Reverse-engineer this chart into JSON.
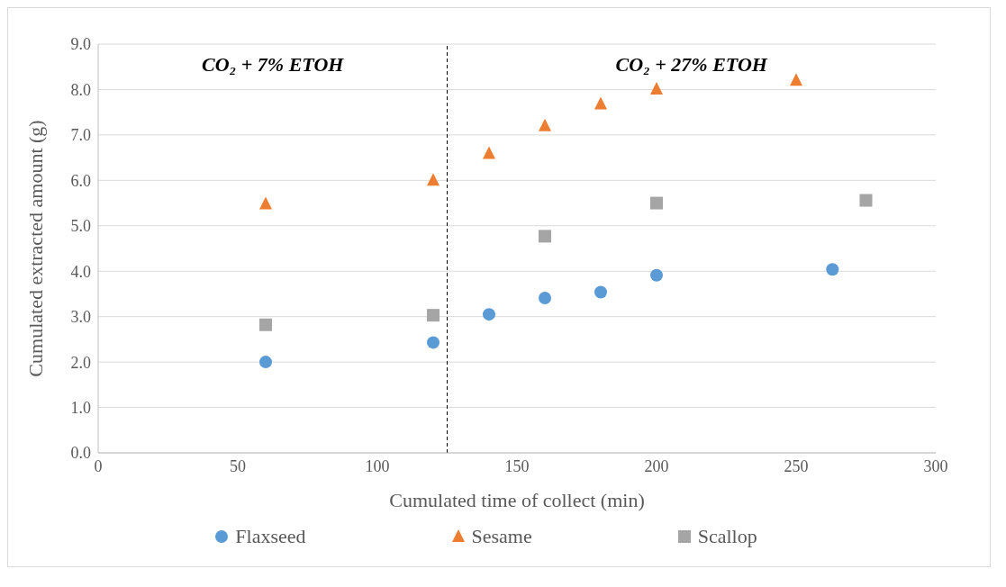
{
  "chart_data": {
    "type": "scatter",
    "xlabel": "Cumulated time of collect (min)",
    "ylabel": "Cumulated extracted amount (g)",
    "xlim": [
      0,
      300
    ],
    "xticks": [
      0,
      50,
      100,
      150,
      200,
      250,
      300
    ],
    "ylim": [
      0,
      9
    ],
    "yticks": [
      {
        "value": 0,
        "label": "0.0"
      },
      {
        "value": 1,
        "label": "1.0"
      },
      {
        "value": 2,
        "label": "2.0"
      },
      {
        "value": 3,
        "label": "3.0"
      },
      {
        "value": 4,
        "label": "4.0"
      },
      {
        "value": 5,
        "label": "5.0"
      },
      {
        "value": 6,
        "label": "6.0"
      },
      {
        "value": 7,
        "label": "7.0"
      },
      {
        "value": 8,
        "label": "8.0"
      },
      {
        "value": 9,
        "label": "9.0"
      }
    ],
    "grid": "y",
    "legend": "bottom",
    "ref_lines": [
      {
        "axis": "x",
        "value": 125,
        "color": "#000000",
        "line_style": "dashed"
      }
    ],
    "annotations": [
      "CO₂ + 7% ETOH",
      "CO₂ + 27% ETOH"
    ],
    "series": [
      {
        "name": "Flaxseed",
        "color": "#5b9bd5",
        "marker": "circle",
        "x": [
          60,
          120,
          140,
          160,
          180,
          200,
          263
        ],
        "values": [
          2.0,
          2.43,
          3.05,
          3.41,
          3.54,
          3.91,
          4.04
        ]
      },
      {
        "name": "Sesame",
        "color": "#ed7d31",
        "marker": "triangle",
        "x": [
          60,
          120,
          140,
          160,
          180,
          200,
          250
        ],
        "values": [
          5.48,
          6.0,
          6.59,
          7.2,
          7.68,
          8.01,
          8.2
        ]
      },
      {
        "name": "Scallop",
        "color": "#a5a5a5",
        "marker": "square",
        "x": [
          60,
          120,
          160,
          200,
          275
        ],
        "values": [
          2.82,
          3.03,
          4.77,
          5.5,
          5.56
        ]
      }
    ]
  }
}
